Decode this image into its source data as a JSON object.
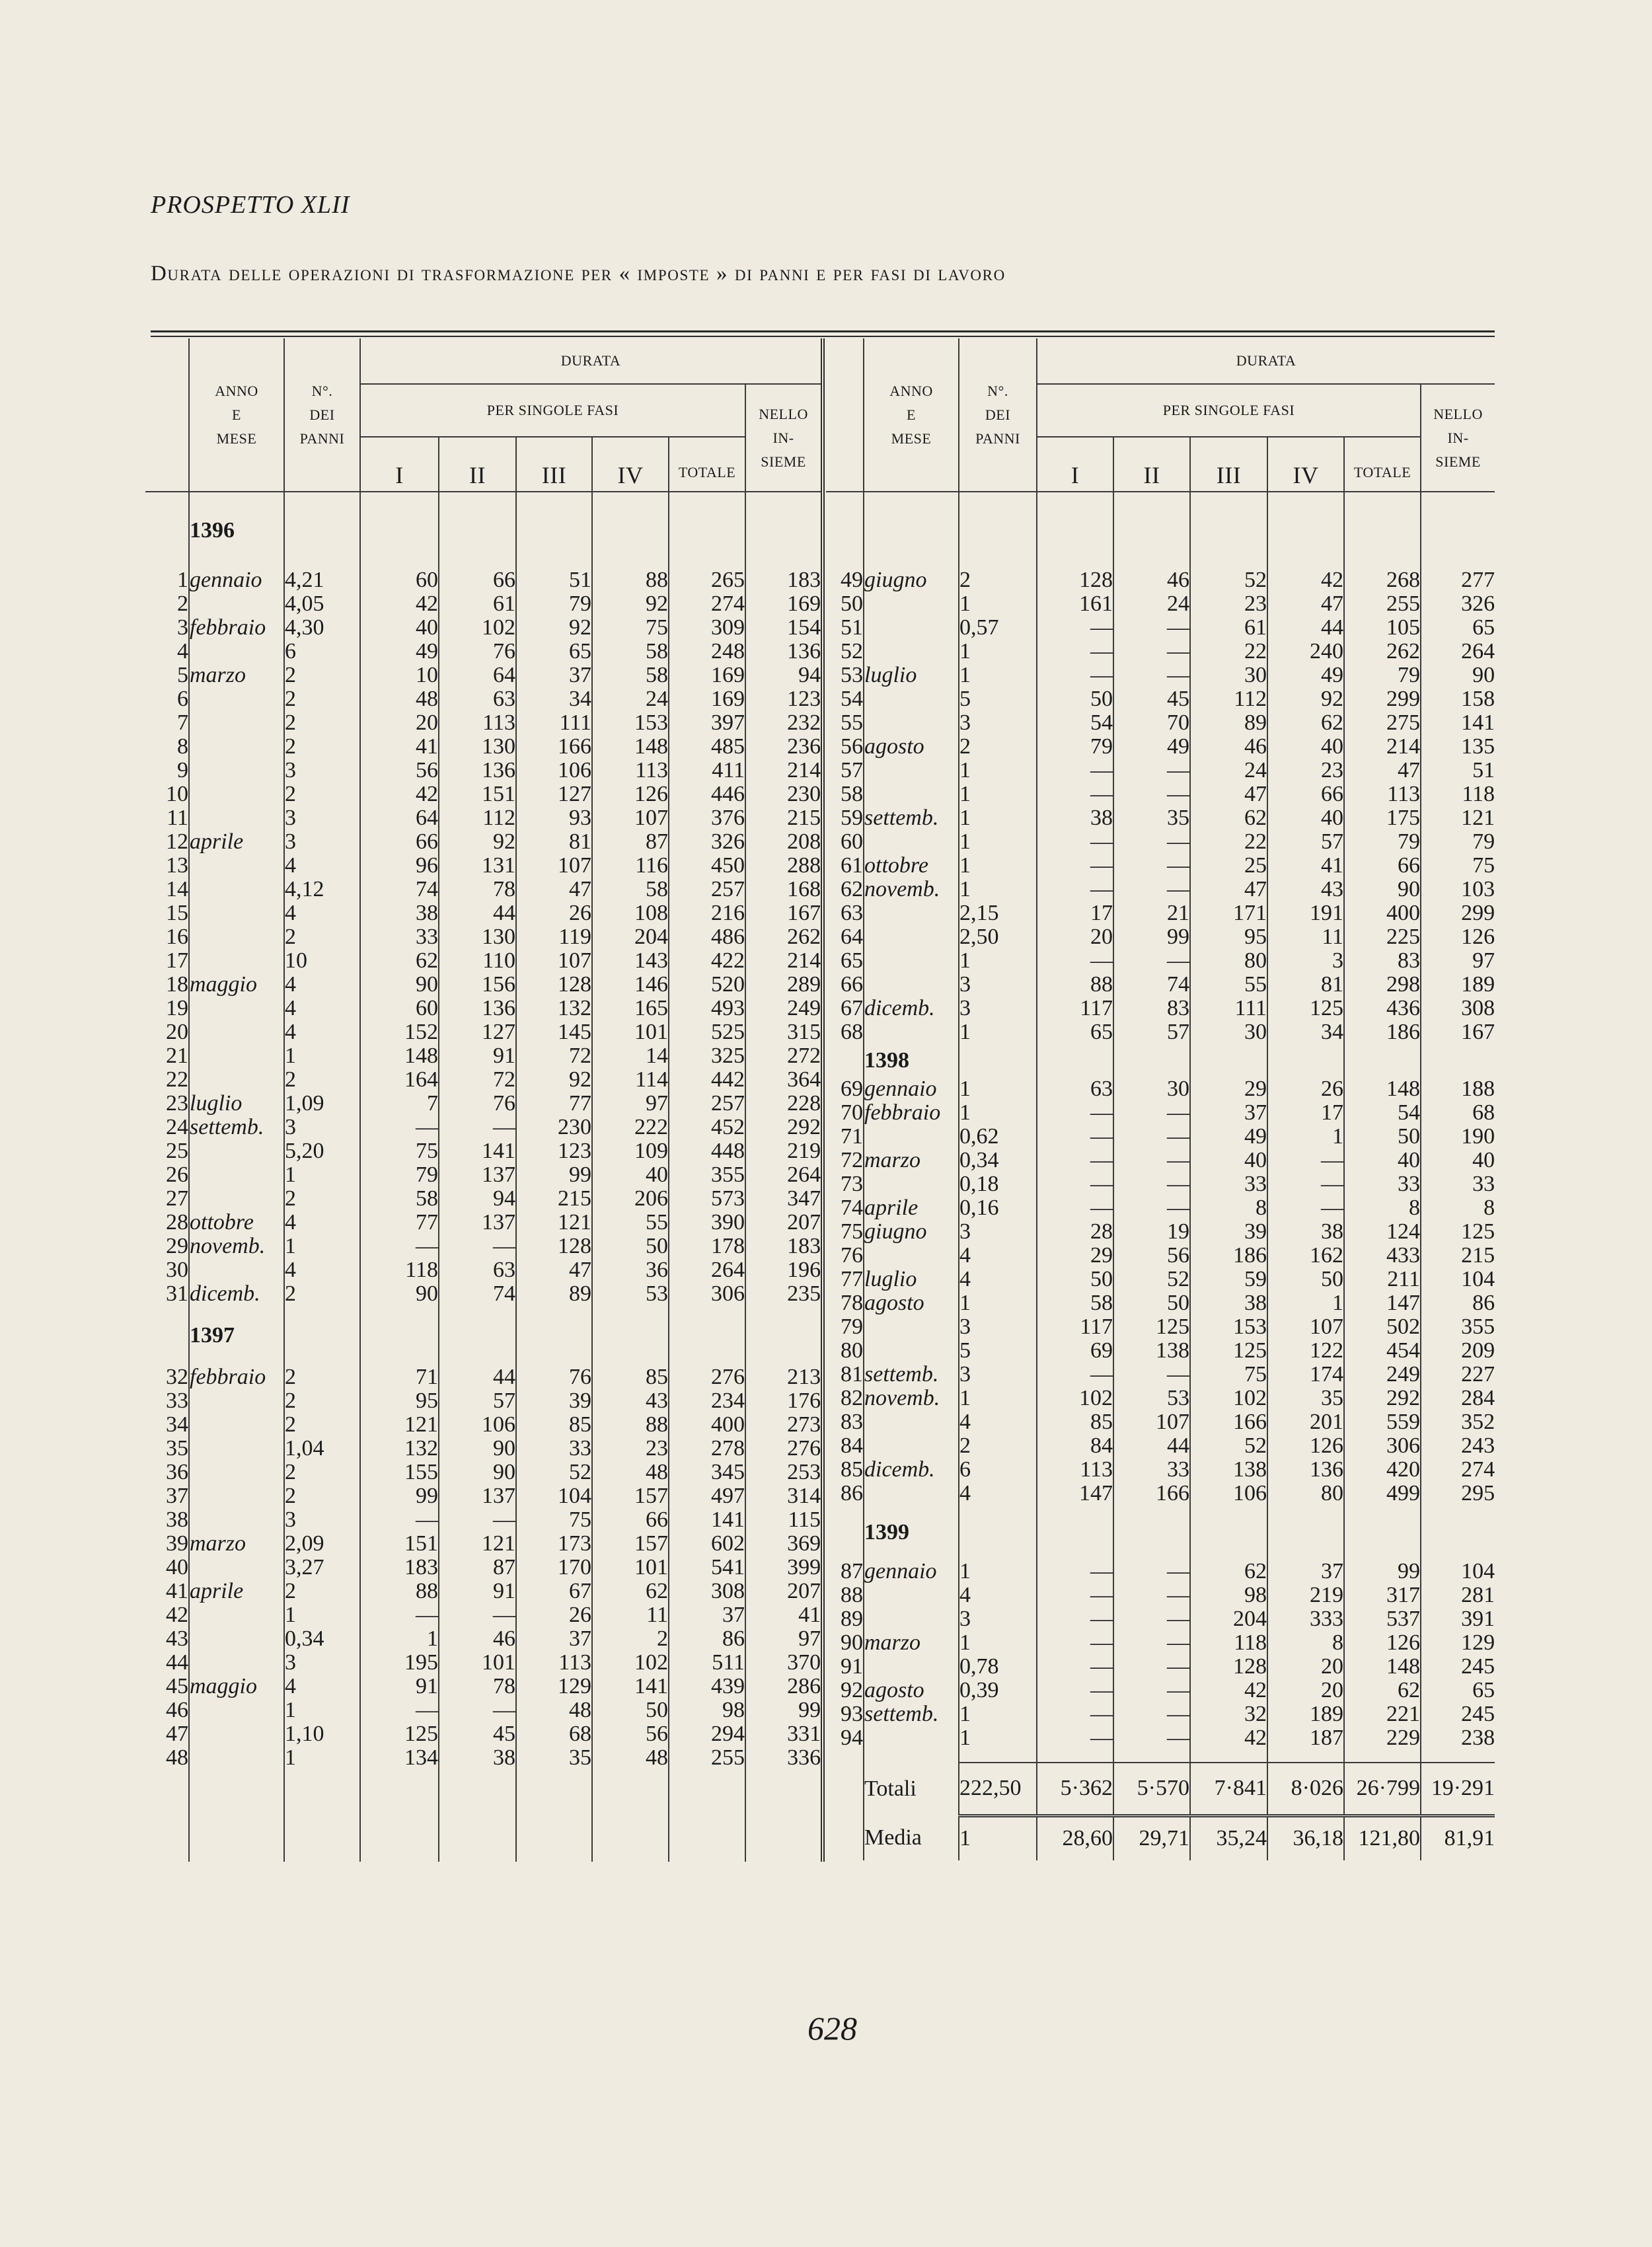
{
  "title": "PROSPETTO XLII",
  "subtitle": "Durata delle operazioni di trasformazione per « imposte » di panni e per fasi di lavoro",
  "header": {
    "anno_mese": [
      "ANNO",
      "E",
      "MESE"
    ],
    "panni": [
      "N°.",
      "DEI",
      "PANNI"
    ],
    "durata": "DURATA",
    "per_singole_fasi": "PER SINGOLE FASI",
    "nello_insieme": [
      "NELLO",
      "IN-",
      "SIEME"
    ],
    "fasi": [
      "I",
      "II",
      "III",
      "IV"
    ],
    "totale": "TOTALE"
  },
  "left": {
    "sections": [
      {
        "year": "1396",
        "rows": [
          [
            "1",
            "gennaio",
            "4,21",
            "60",
            "66",
            "51",
            "88",
            "265",
            "183"
          ],
          [
            "2",
            "",
            "4,05",
            "42",
            "61",
            "79",
            "92",
            "274",
            "169"
          ],
          [
            "3",
            "febbraio",
            "4,30",
            "40",
            "102",
            "92",
            "75",
            "309",
            "154"
          ],
          [
            "4",
            "",
            "6",
            "49",
            "76",
            "65",
            "58",
            "248",
            "136"
          ],
          [
            "5",
            "marzo",
            "2",
            "10",
            "64",
            "37",
            "58",
            "169",
            "94"
          ],
          [
            "6",
            "",
            "2",
            "48",
            "63",
            "34",
            "24",
            "169",
            "123"
          ],
          [
            "7",
            "",
            "2",
            "20",
            "113",
            "111",
            "153",
            "397",
            "232"
          ],
          [
            "8",
            "",
            "2",
            "41",
            "130",
            "166",
            "148",
            "485",
            "236"
          ],
          [
            "9",
            "",
            "3",
            "56",
            "136",
            "106",
            "113",
            "411",
            "214"
          ],
          [
            "10",
            "",
            "2",
            "42",
            "151",
            "127",
            "126",
            "446",
            "230"
          ],
          [
            "11",
            "",
            "3",
            "64",
            "112",
            "93",
            "107",
            "376",
            "215"
          ],
          [
            "12",
            "aprile",
            "3",
            "66",
            "92",
            "81",
            "87",
            "326",
            "208"
          ],
          [
            "13",
            "",
            "4",
            "96",
            "131",
            "107",
            "116",
            "450",
            "288"
          ],
          [
            "14",
            "",
            "4,12",
            "74",
            "78",
            "47",
            "58",
            "257",
            "168"
          ],
          [
            "15",
            "",
            "4",
            "38",
            "44",
            "26",
            "108",
            "216",
            "167"
          ],
          [
            "16",
            "",
            "2",
            "33",
            "130",
            "119",
            "204",
            "486",
            "262"
          ],
          [
            "17",
            "",
            "10",
            "62",
            "110",
            "107",
            "143",
            "422",
            "214"
          ],
          [
            "18",
            "maggio",
            "4",
            "90",
            "156",
            "128",
            "146",
            "520",
            "289"
          ],
          [
            "19",
            "",
            "4",
            "60",
            "136",
            "132",
            "165",
            "493",
            "249"
          ],
          [
            "20",
            "",
            "4",
            "152",
            "127",
            "145",
            "101",
            "525",
            "315"
          ],
          [
            "21",
            "",
            "1",
            "148",
            "91",
            "72",
            "14",
            "325",
            "272"
          ],
          [
            "22",
            "",
            "2",
            "164",
            "72",
            "92",
            "114",
            "442",
            "364"
          ],
          [
            "23",
            "luglio",
            "1,09",
            "7",
            "76",
            "77",
            "97",
            "257",
            "228"
          ],
          [
            "24",
            "settemb.",
            "3",
            "—",
            "—",
            "230",
            "222",
            "452",
            "292"
          ],
          [
            "25",
            "",
            "5,20",
            "75",
            "141",
            "123",
            "109",
            "448",
            "219"
          ],
          [
            "26",
            "",
            "1",
            "79",
            "137",
            "99",
            "40",
            "355",
            "264"
          ],
          [
            "27",
            "",
            "2",
            "58",
            "94",
            "215",
            "206",
            "573",
            "347"
          ],
          [
            "28",
            "ottobre",
            "4",
            "77",
            "137",
            "121",
            "55",
            "390",
            "207"
          ],
          [
            "29",
            "novemb.",
            "1",
            "—",
            "—",
            "128",
            "50",
            "178",
            "183"
          ],
          [
            "30",
            "",
            "4",
            "118",
            "63",
            "47",
            "36",
            "264",
            "196"
          ],
          [
            "31",
            "dicemb.",
            "2",
            "90",
            "74",
            "89",
            "53",
            "306",
            "235"
          ]
        ]
      },
      {
        "year": "1397",
        "rows": [
          [
            "32",
            "febbraio",
            "2",
            "71",
            "44",
            "76",
            "85",
            "276",
            "213"
          ],
          [
            "33",
            "",
            "2",
            "95",
            "57",
            "39",
            "43",
            "234",
            "176"
          ],
          [
            "34",
            "",
            "2",
            "121",
            "106",
            "85",
            "88",
            "400",
            "273"
          ],
          [
            "35",
            "",
            "1,04",
            "132",
            "90",
            "33",
            "23",
            "278",
            "276"
          ],
          [
            "36",
            "",
            "2",
            "155",
            "90",
            "52",
            "48",
            "345",
            "253"
          ],
          [
            "37",
            "",
            "2",
            "99",
            "137",
            "104",
            "157",
            "497",
            "314"
          ],
          [
            "38",
            "",
            "3",
            "—",
            "—",
            "75",
            "66",
            "141",
            "115"
          ],
          [
            "39",
            "marzo",
            "2,09",
            "151",
            "121",
            "173",
            "157",
            "602",
            "369"
          ],
          [
            "40",
            "",
            "3,27",
            "183",
            "87",
            "170",
            "101",
            "541",
            "399"
          ],
          [
            "41",
            "aprile",
            "2",
            "88",
            "91",
            "67",
            "62",
            "308",
            "207"
          ],
          [
            "42",
            "",
            "1",
            "—",
            "—",
            "26",
            "11",
            "37",
            "41"
          ],
          [
            "43",
            "",
            "0,34",
            "1",
            "46",
            "37",
            "2",
            "86",
            "97"
          ],
          [
            "44",
            "",
            "3",
            "195",
            "101",
            "113",
            "102",
            "511",
            "370"
          ],
          [
            "45",
            "maggio",
            "4",
            "91",
            "78",
            "129",
            "141",
            "439",
            "286"
          ],
          [
            "46",
            "",
            "1",
            "—",
            "—",
            "48",
            "50",
            "98",
            "99"
          ],
          [
            "47",
            "",
            "1,10",
            "125",
            "45",
            "68",
            "56",
            "294",
            "331"
          ],
          [
            "48",
            "",
            "1",
            "134",
            "38",
            "35",
            "48",
            "255",
            "336"
          ]
        ]
      }
    ]
  },
  "right": {
    "sections": [
      {
        "rows": [
          [
            "49",
            "giugno",
            "2",
            "128",
            "46",
            "52",
            "42",
            "268",
            "277"
          ],
          [
            "50",
            "",
            "1",
            "161",
            "24",
            "23",
            "47",
            "255",
            "326"
          ],
          [
            "51",
            "",
            "0,57",
            "—",
            "—",
            "61",
            "44",
            "105",
            "65"
          ],
          [
            "52",
            "",
            "1",
            "—",
            "—",
            "22",
            "240",
            "262",
            "264"
          ],
          [
            "53",
            "luglio",
            "1",
            "—",
            "—",
            "30",
            "49",
            "79",
            "90"
          ],
          [
            "54",
            "",
            "5",
            "50",
            "45",
            "112",
            "92",
            "299",
            "158"
          ],
          [
            "55",
            "",
            "3",
            "54",
            "70",
            "89",
            "62",
            "275",
            "141"
          ],
          [
            "56",
            "agosto",
            "2",
            "79",
            "49",
            "46",
            "40",
            "214",
            "135"
          ],
          [
            "57",
            "",
            "1",
            "—",
            "—",
            "24",
            "23",
            "47",
            "51"
          ],
          [
            "58",
            "",
            "1",
            "—",
            "—",
            "47",
            "66",
            "113",
            "118"
          ],
          [
            "59",
            "settemb.",
            "1",
            "38",
            "35",
            "62",
            "40",
            "175",
            "121"
          ],
          [
            "60",
            "",
            "1",
            "—",
            "—",
            "22",
            "57",
            "79",
            "79"
          ],
          [
            "61",
            "ottobre",
            "1",
            "—",
            "—",
            "25",
            "41",
            "66",
            "75"
          ],
          [
            "62",
            "novemb.",
            "1",
            "—",
            "—",
            "47",
            "43",
            "90",
            "103"
          ],
          [
            "63",
            "",
            "2,15",
            "17",
            "21",
            "171",
            "191",
            "400",
            "299"
          ],
          [
            "64",
            "",
            "2,50",
            "20",
            "99",
            "95",
            "11",
            "225",
            "126"
          ],
          [
            "65",
            "",
            "1",
            "—",
            "—",
            "80",
            "3",
            "83",
            "97"
          ],
          [
            "66",
            "",
            "3",
            "88",
            "74",
            "55",
            "81",
            "298",
            "189"
          ],
          [
            "67",
            "dicemb.",
            "3",
            "117",
            "83",
            "111",
            "125",
            "436",
            "308"
          ],
          [
            "68",
            "",
            "1",
            "65",
            "57",
            "30",
            "34",
            "186",
            "167"
          ]
        ]
      },
      {
        "year": "1398",
        "rows": [
          [
            "69",
            "gennaio",
            "1",
            "63",
            "30",
            "29",
            "26",
            "148",
            "188"
          ],
          [
            "70",
            "febbraio",
            "1",
            "—",
            "—",
            "37",
            "17",
            "54",
            "68"
          ],
          [
            "71",
            "",
            "0,62",
            "—",
            "—",
            "49",
            "1",
            "50",
            "190"
          ],
          [
            "72",
            "marzo",
            "0,34",
            "—",
            "—",
            "40",
            "—",
            "40",
            "40"
          ],
          [
            "73",
            "",
            "0,18",
            "—",
            "—",
            "33",
            "—",
            "33",
            "33"
          ],
          [
            "74",
            "aprile",
            "0,16",
            "—",
            "—",
            "8",
            "—",
            "8",
            "8"
          ],
          [
            "75",
            "giugno",
            "3",
            "28",
            "19",
            "39",
            "38",
            "124",
            "125"
          ],
          [
            "76",
            "",
            "4",
            "29",
            "56",
            "186",
            "162",
            "433",
            "215"
          ],
          [
            "77",
            "luglio",
            "4",
            "50",
            "52",
            "59",
            "50",
            "211",
            "104"
          ],
          [
            "78",
            "agosto",
            "1",
            "58",
            "50",
            "38",
            "1",
            "147",
            "86"
          ],
          [
            "79",
            "",
            "3",
            "117",
            "125",
            "153",
            "107",
            "502",
            "355"
          ],
          [
            "80",
            "",
            "5",
            "69",
            "138",
            "125",
            "122",
            "454",
            "209"
          ],
          [
            "81",
            "settemb.",
            "3",
            "—",
            "—",
            "75",
            "174",
            "249",
            "227"
          ],
          [
            "82",
            "novemb.",
            "1",
            "102",
            "53",
            "102",
            "35",
            "292",
            "284"
          ],
          [
            "83",
            "",
            "4",
            "85",
            "107",
            "166",
            "201",
            "559",
            "352"
          ],
          [
            "84",
            "",
            "2",
            "84",
            "44",
            "52",
            "126",
            "306",
            "243"
          ],
          [
            "85",
            "dicemb.",
            "6",
            "113",
            "33",
            "138",
            "136",
            "420",
            "274"
          ],
          [
            "86",
            "",
            "4",
            "147",
            "166",
            "106",
            "80",
            "499",
            "295"
          ]
        ]
      },
      {
        "year": "1399",
        "rows": [
          [
            "87",
            "gennaio",
            "1",
            "—",
            "—",
            "62",
            "37",
            "99",
            "104"
          ],
          [
            "88",
            "",
            "4",
            "—",
            "—",
            "98",
            "219",
            "317",
            "281"
          ],
          [
            "89",
            "",
            "3",
            "—",
            "—",
            "204",
            "333",
            "537",
            "391"
          ],
          [
            "90",
            "marzo",
            "1",
            "—",
            "—",
            "118",
            "8",
            "126",
            "129"
          ],
          [
            "91",
            "",
            "0,78",
            "—",
            "—",
            "128",
            "20",
            "148",
            "245"
          ],
          [
            "92",
            "agosto",
            "0,39",
            "—",
            "—",
            "42",
            "20",
            "62",
            "65"
          ],
          [
            "93",
            "settemb.",
            "1",
            "—",
            "—",
            "32",
            "189",
            "221",
            "245"
          ],
          [
            "94",
            "",
            "1",
            "—",
            "—",
            "42",
            "187",
            "229",
            "238"
          ]
        ]
      }
    ],
    "totals": {
      "label": "Totali",
      "values": [
        "222,50",
        "5·362",
        "5·570",
        "7·841",
        "8·026",
        "26·799",
        "19·291"
      ]
    },
    "media": {
      "label": "Media",
      "values": [
        "1",
        "28,60",
        "29,71",
        "35,24",
        "36,18",
        "121,80",
        "81,91"
      ]
    }
  },
  "page_number": "628"
}
